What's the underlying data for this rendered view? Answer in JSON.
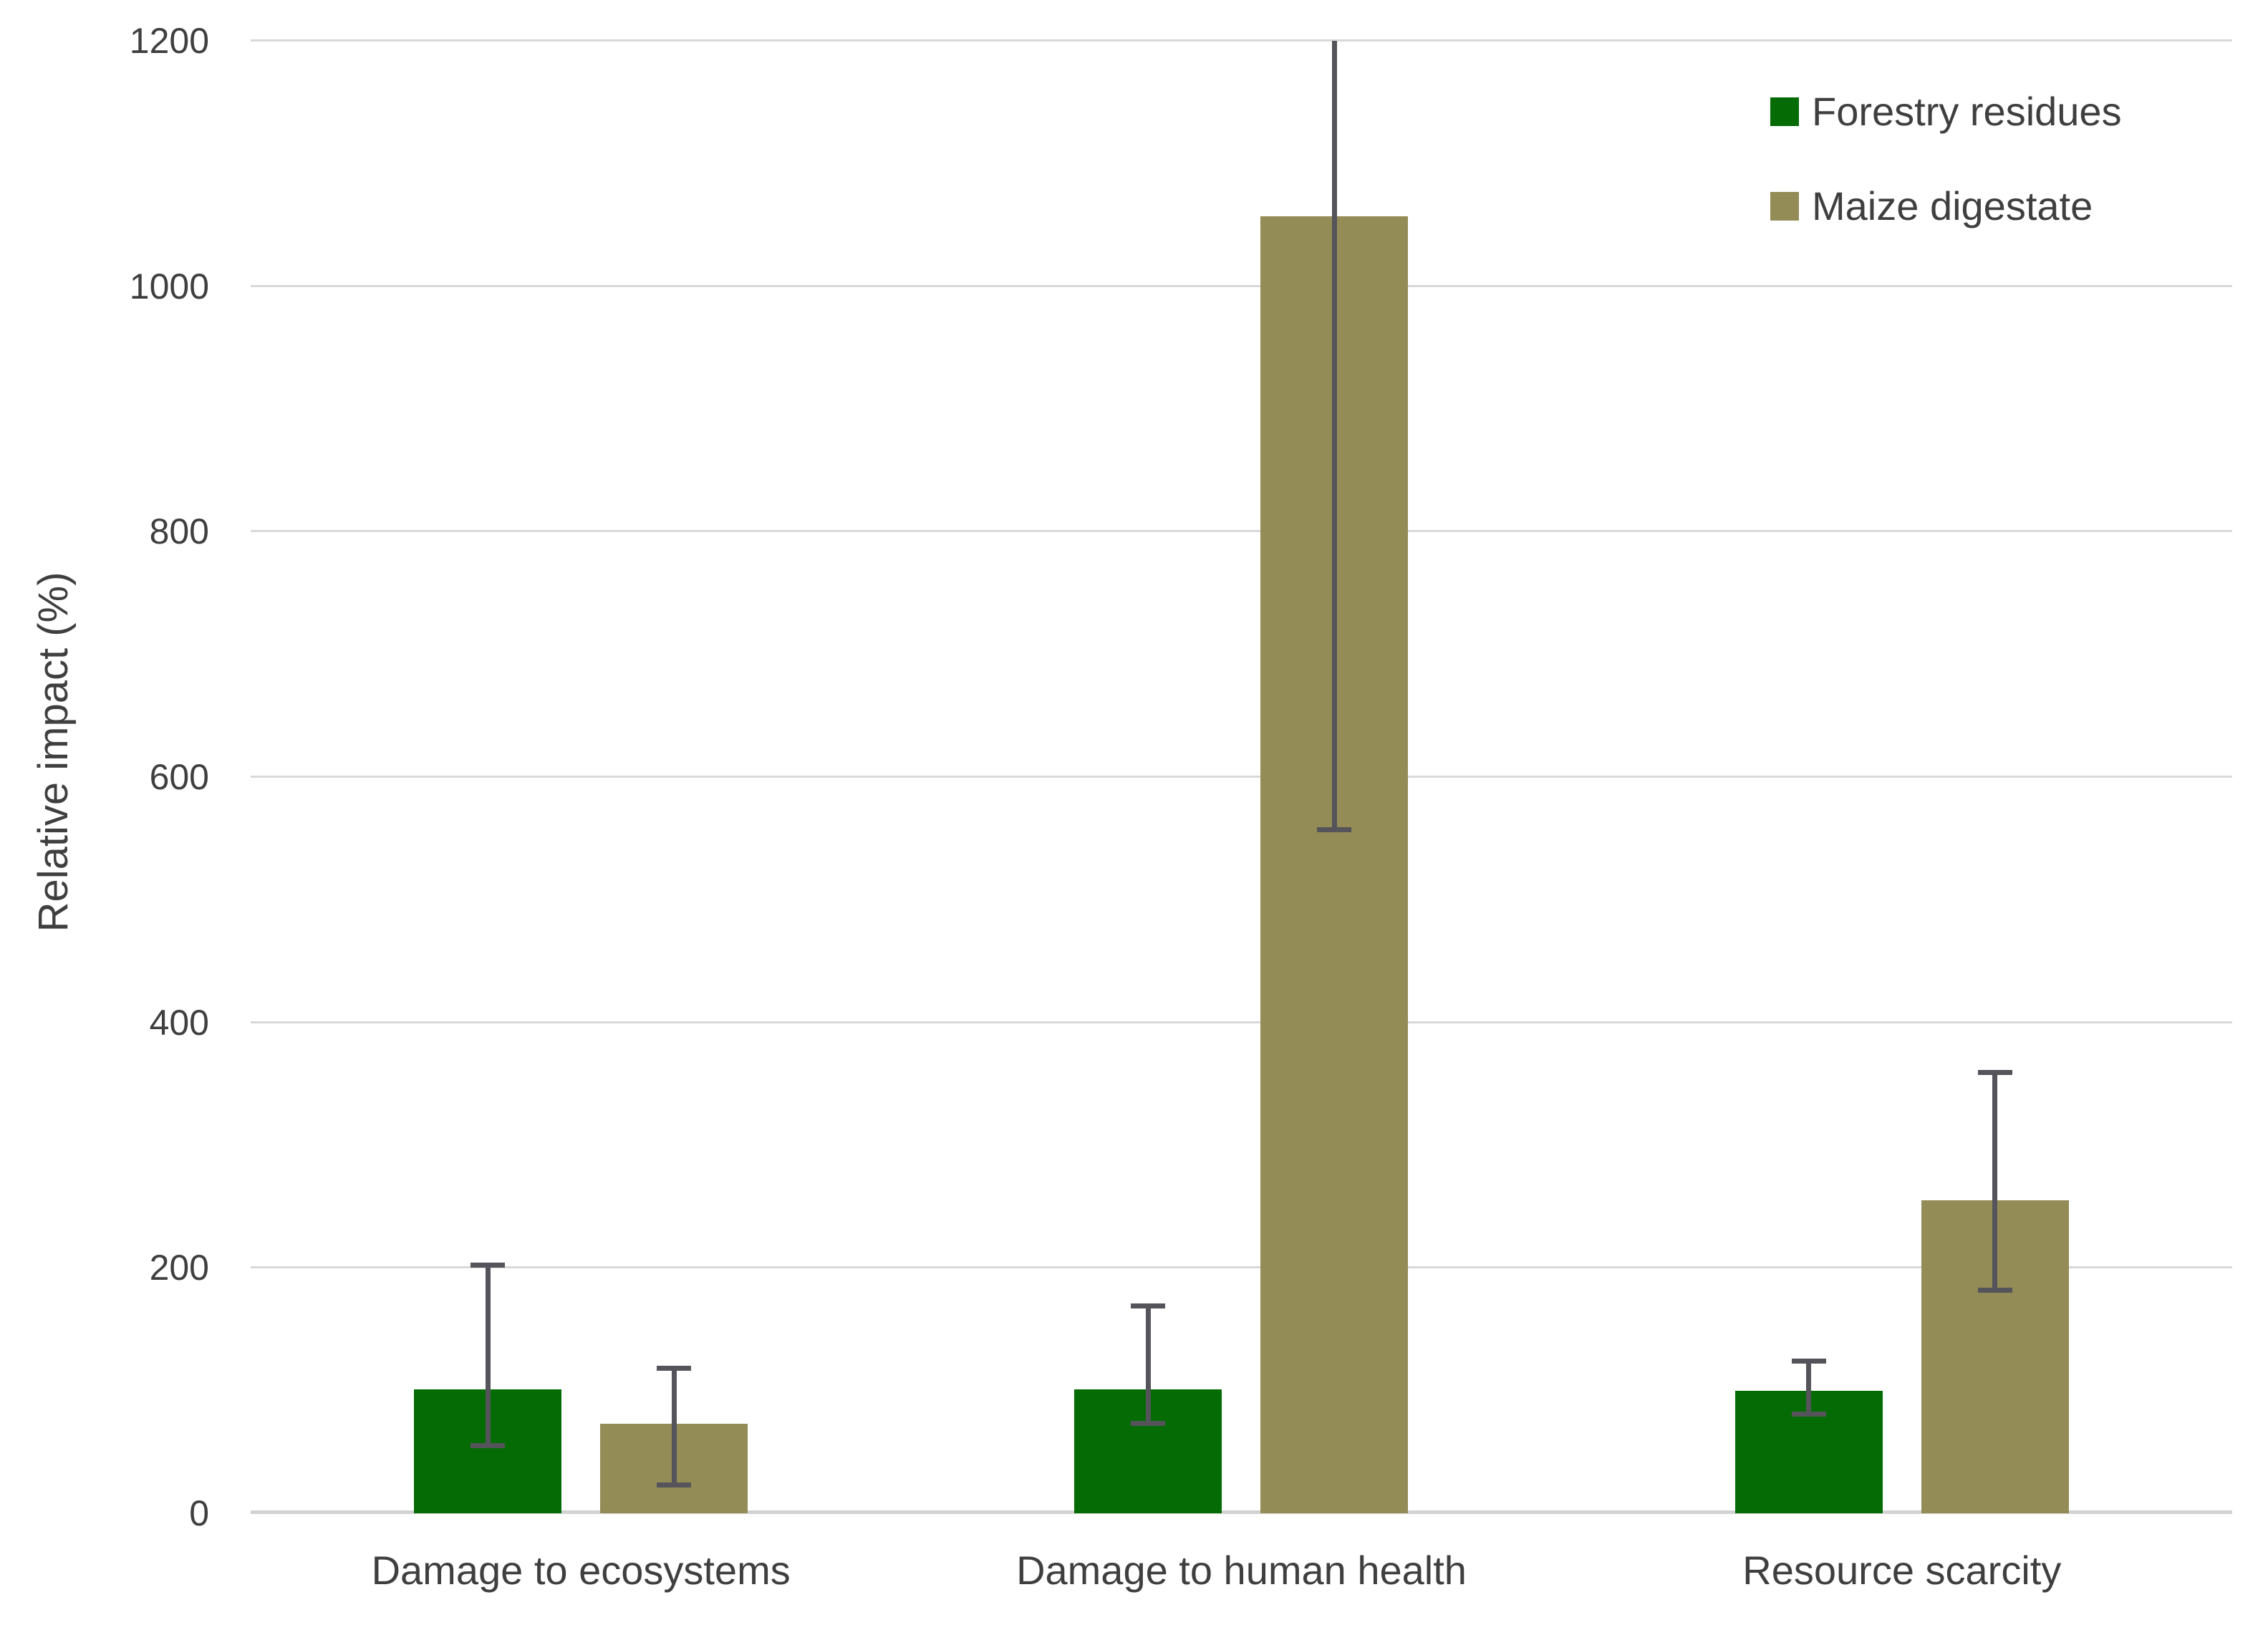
{
  "chart_data": {
    "type": "bar",
    "title": "",
    "xlabel": "",
    "ylabel": "Relative impact (%)",
    "ylim": [
      0,
      1200
    ],
    "yticks": [
      0,
      200,
      400,
      600,
      800,
      1000,
      1200
    ],
    "grid": true,
    "legend_position": "top-right",
    "categories": [
      "Damage to ecosystems",
      "Damage to human health",
      "Resource scarcity"
    ],
    "series": [
      {
        "name": "Forestry residues",
        "color": "#056b05",
        "values": [
          101,
          101,
          100
        ],
        "error_bars": [
          {
            "low": 53,
            "high": 204,
            "clipped_top": false
          },
          {
            "low": 71,
            "high": 171,
            "clipped_top": false
          },
          {
            "low": 79,
            "high": 126,
            "clipped_top": false
          }
        ]
      },
      {
        "name": "Maize digestate",
        "color": "#948c56",
        "values": [
          73,
          1057,
          255
        ],
        "error_bars": [
          {
            "low": 21,
            "high": 120,
            "clipped_top": false
          },
          {
            "low": 555,
            "high": 1200,
            "clipped_top": true
          },
          {
            "low": 180,
            "high": 361,
            "clipped_top": false
          }
        ]
      }
    ],
    "colors": {
      "background": "#ffffff",
      "gridline": "#d9d9d9",
      "error_bar": "#54545a",
      "text": "#3f3f3f"
    }
  }
}
